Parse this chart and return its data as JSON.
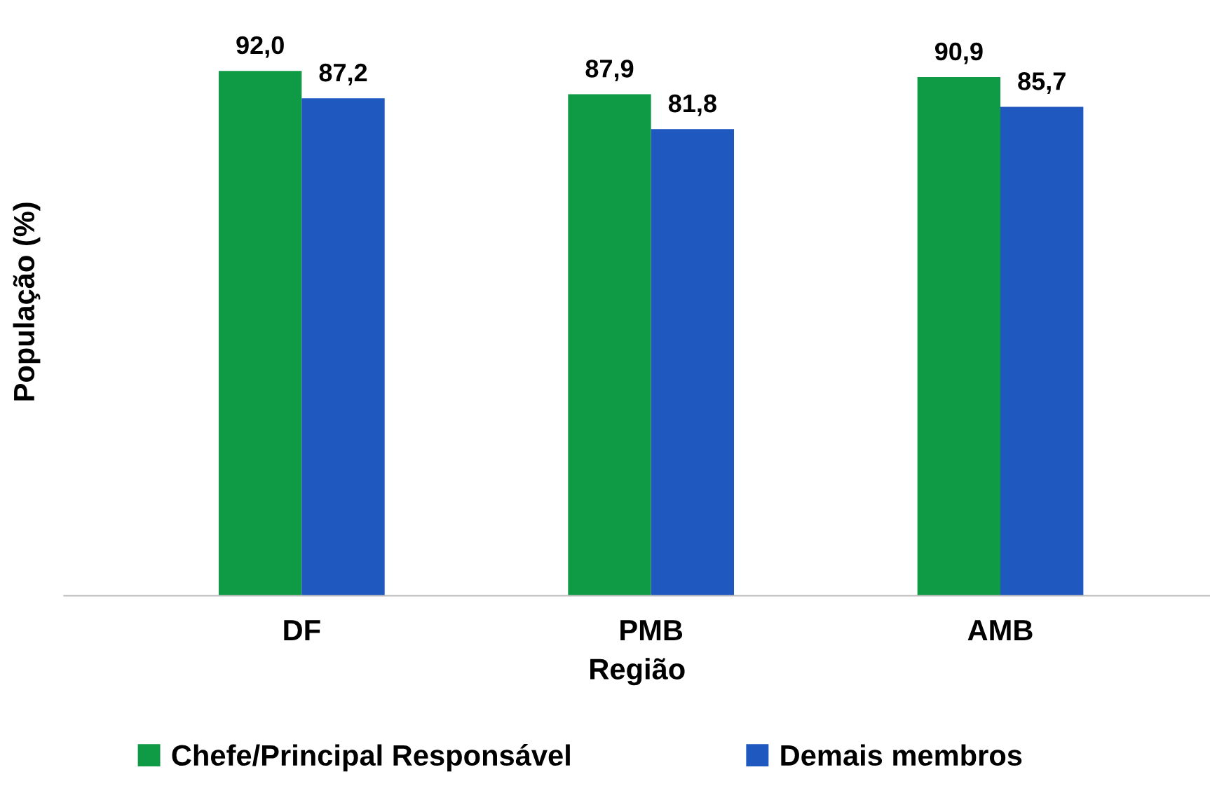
{
  "chart_data": {
    "type": "bar",
    "xlabel": "Região",
    "ylabel": "População (%)",
    "categories": [
      "DF",
      "PMB",
      "AMB"
    ],
    "series": [
      {
        "name": "Chefe/Principal Responsável",
        "color": "#0f9a46",
        "values": [
          92.0,
          87.9,
          90.9
        ],
        "value_labels": [
          "92,0",
          "87,9",
          "90,9"
        ]
      },
      {
        "name": "Demais membros",
        "color": "#1f58be",
        "values": [
          87.2,
          81.8,
          85.7
        ],
        "value_labels": [
          "87,2",
          "81,8",
          "85,7"
        ]
      }
    ],
    "tick_labels": "x",
    "grid": false,
    "legend": "bottom"
  }
}
